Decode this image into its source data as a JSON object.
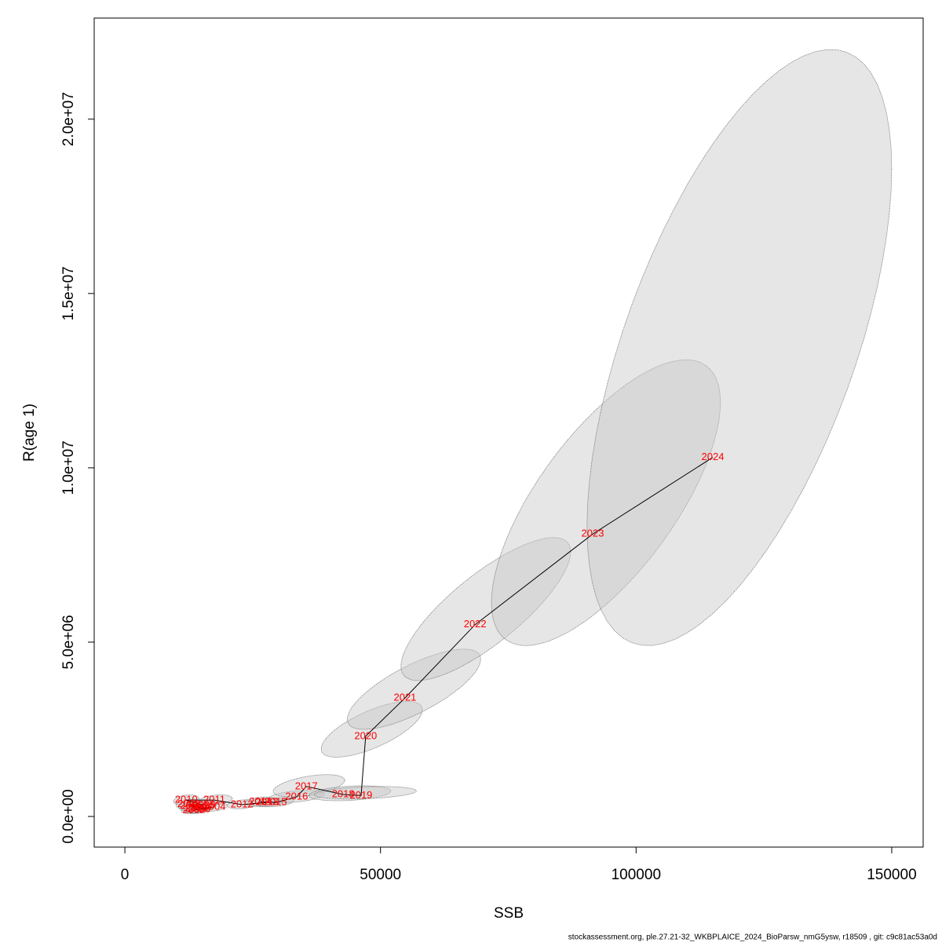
{
  "chart_data": {
    "type": "scatter",
    "xlabel": "SSB",
    "ylabel": "R(age 1)",
    "footer": "stockassessment.org, ple.27.21-32_WKBPLAICE_2024_BioParsw_nmG5ysw, r18509 , git: c9c81ac53a0d",
    "labels": [
      "2002",
      "2003",
      "2004",
      "2005",
      "2006",
      "2007",
      "2008",
      "2009",
      "2010",
      "2011",
      "2012",
      "2013",
      "2014",
      "2015",
      "2016",
      "2017",
      "2018",
      "2019",
      "2020",
      "2021",
      "2022",
      "2023",
      "2024"
    ],
    "x": [
      13500,
      14500,
      17500,
      14000,
      13000,
      15000,
      12500,
      15500,
      12000,
      17500,
      22900,
      27800,
      26500,
      29500,
      33600,
      35500,
      42700,
      46200,
      47100,
      54800,
      68500,
      91500,
      115000
    ],
    "y": [
      180000,
      200000,
      270000,
      220000,
      300000,
      250000,
      350000,
      320000,
      470000,
      470000,
      340000,
      400000,
      420000,
      400000,
      560000,
      860000,
      630000,
      600000,
      2300000,
      3400000,
      5500000,
      8100000,
      10300000
    ],
    "ssb_low": [
      11000,
      12000,
      15000,
      11500,
      10500,
      12500,
      10000,
      13000,
      9500,
      14500,
      20000,
      24500,
      23500,
      26000,
      28000,
      29000,
      36000,
      37000,
      38400,
      43500,
      54000,
      71700,
      90400
    ],
    "ssb_high": [
      16000,
      17000,
      20000,
      16500,
      15500,
      17500,
      15000,
      18000,
      14500,
      21000,
      26000,
      31000,
      29500,
      33000,
      39000,
      43000,
      52000,
      57000,
      58200,
      69600,
      87200,
      116500,
      150000
    ],
    "r_low": [
      80000,
      90000,
      150000,
      100000,
      170000,
      130000,
      220000,
      190000,
      330000,
      330000,
      220000,
      280000,
      290000,
      280000,
      400000,
      560000,
      450000,
      500000,
      1700000,
      2500000,
      3900000,
      4900000,
      4900000
    ],
    "r_high": [
      300000,
      320000,
      400000,
      340000,
      440000,
      380000,
      500000,
      460000,
      620000,
      620000,
      480000,
      540000,
      560000,
      540000,
      750000,
      1200000,
      880000,
      860000,
      3300000,
      4800000,
      8000000,
      13100000,
      22000000
    ],
    "corr": [
      0.3,
      0.3,
      0.3,
      0.3,
      0.3,
      0.3,
      0.3,
      0.3,
      0.3,
      0.3,
      0.3,
      0.3,
      0.3,
      0.3,
      0.4,
      0.5,
      0.3,
      0.3,
      0.7,
      0.75,
      0.8,
      0.7,
      0.6
    ],
    "label_color": "#ff0000",
    "line_color": "#000000",
    "region_color": "#c8c8c8",
    "xlim": [
      -6000,
      156150
    ],
    "ylim": [
      -878000,
      22900000
    ],
    "xticks": [
      0,
      50000,
      100000,
      150000
    ],
    "yticks": [
      {
        "value": 0,
        "label": "0.0e+00"
      },
      {
        "value": 5000000,
        "label": "5.0e+06"
      },
      {
        "value": 10000000,
        "label": "1.0e+07"
      },
      {
        "value": 15000000,
        "label": "1.5e+07"
      },
      {
        "value": 20000000,
        "label": "2.0e+07"
      }
    ]
  }
}
